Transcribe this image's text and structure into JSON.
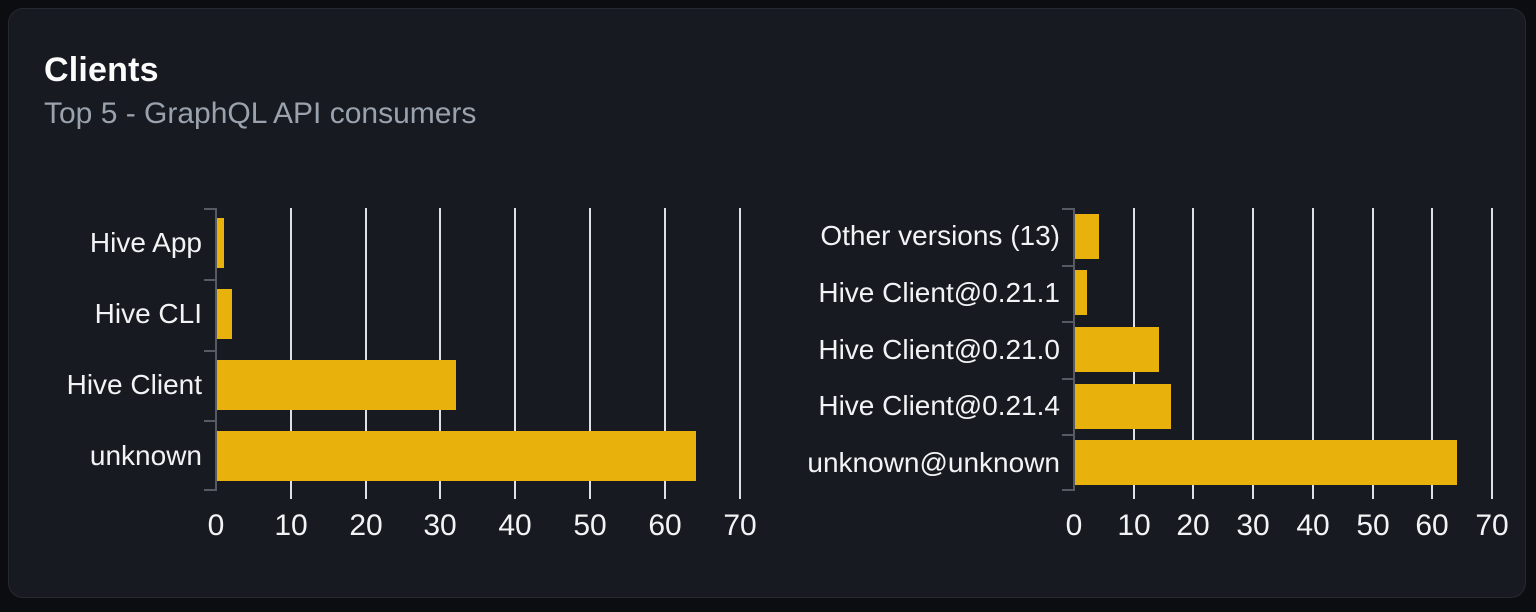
{
  "header": {
    "title": "Clients",
    "subtitle": "Top 5 - GraphQL API consumers"
  },
  "colors": {
    "bar": "#e8b10b",
    "card_bg": "#171a20",
    "page_bg": "#0c0d10",
    "gridline": "#dde0e4",
    "axis": "#565a63",
    "title_text": "#fcfcfd",
    "subtitle_text": "#9aa2ad",
    "label_text": "#f2f3f5"
  },
  "chart_data": [
    {
      "type": "bar",
      "orientation": "horizontal",
      "name": "clients-by-name",
      "categories": [
        "Hive App",
        "Hive CLI",
        "Hive Client",
        "unknown"
      ],
      "values": [
        1,
        2,
        32,
        64
      ],
      "xlim": [
        0,
        71
      ],
      "xticks": [
        0,
        10,
        20,
        30,
        40,
        50,
        60,
        70
      ],
      "grid": true,
      "legend": false
    },
    {
      "type": "bar",
      "orientation": "horizontal",
      "name": "clients-by-version",
      "categories": [
        "Other versions (13)",
        "Hive Client@0.21.1",
        "Hive Client@0.21.0",
        "Hive Client@0.21.4",
        "unknown@unknown"
      ],
      "values": [
        4,
        2,
        14,
        16,
        64
      ],
      "xlim": [
        0,
        71
      ],
      "xticks": [
        0,
        10,
        20,
        30,
        40,
        50,
        60,
        70
      ],
      "grid": true,
      "legend": false
    }
  ]
}
